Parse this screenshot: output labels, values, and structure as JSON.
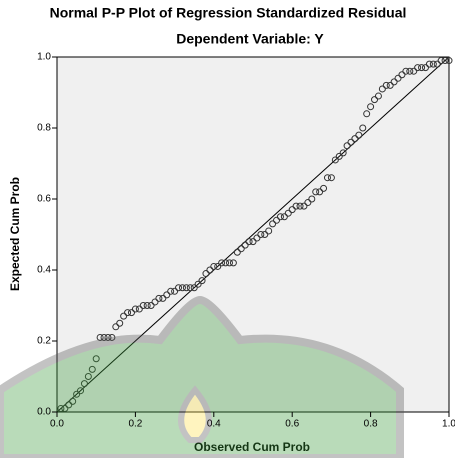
{
  "chart_data": {
    "type": "scatter",
    "title": "Normal P-P Plot of Regression Standardized Residual",
    "subtitle": "Dependent Variable: Y",
    "x_label": "Observed Cum Prob",
    "y_label": "Expected Cum Prob",
    "xlim": [
      0,
      1
    ],
    "ylim": [
      0,
      1
    ],
    "xticks": [
      {
        "value": 0,
        "label": "0.0"
      },
      0.2,
      0.4,
      0.6,
      0.8,
      {
        "value": 1,
        "label": "1.0"
      }
    ],
    "yticks": [
      {
        "value": 0,
        "label": "0.0"
      },
      0.2,
      0.4,
      0.6,
      0.8,
      {
        "value": 1,
        "label": "1.0"
      }
    ],
    "x": [
      0.01,
      0.02,
      0.03,
      0.04,
      0.05,
      0.06,
      0.07,
      0.08,
      0.09,
      0.1,
      0.11,
      0.12,
      0.13,
      0.14,
      0.15,
      0.16,
      0.17,
      0.18,
      0.19,
      0.2,
      0.21,
      0.22,
      0.23,
      0.24,
      0.25,
      0.26,
      0.27,
      0.28,
      0.29,
      0.3,
      0.31,
      0.32,
      0.33,
      0.34,
      0.35,
      0.36,
      0.37,
      0.38,
      0.39,
      0.4,
      0.41,
      0.42,
      0.43,
      0.44,
      0.45,
      0.46,
      0.47,
      0.48,
      0.49,
      0.5,
      0.51,
      0.52,
      0.53,
      0.54,
      0.55,
      0.56,
      0.57,
      0.58,
      0.59,
      0.6,
      0.61,
      0.62,
      0.63,
      0.64,
      0.65,
      0.66,
      0.67,
      0.68,
      0.69,
      0.7,
      0.71,
      0.72,
      0.73,
      0.74,
      0.75,
      0.76,
      0.77,
      0.78,
      0.79,
      0.8,
      0.81,
      0.82,
      0.83,
      0.84,
      0.85,
      0.86,
      0.87,
      0.88,
      0.89,
      0.9,
      0.91,
      0.92,
      0.93,
      0.94,
      0.95,
      0.96,
      0.97,
      0.98,
      0.99,
      1.0
    ],
    "values": [
      0.01,
      0.01,
      0.02,
      0.03,
      0.05,
      0.06,
      0.08,
      0.1,
      0.12,
      0.15,
      0.21,
      0.21,
      0.21,
      0.21,
      0.24,
      0.25,
      0.27,
      0.28,
      0.28,
      0.29,
      0.29,
      0.3,
      0.3,
      0.3,
      0.31,
      0.32,
      0.32,
      0.33,
      0.34,
      0.34,
      0.35,
      0.35,
      0.35,
      0.35,
      0.35,
      0.36,
      0.37,
      0.39,
      0.4,
      0.41,
      0.41,
      0.42,
      0.42,
      0.42,
      0.42,
      0.45,
      0.46,
      0.47,
      0.48,
      0.48,
      0.49,
      0.5,
      0.5,
      0.51,
      0.53,
      0.54,
      0.55,
      0.55,
      0.56,
      0.57,
      0.58,
      0.58,
      0.58,
      0.59,
      0.6,
      0.62,
      0.62,
      0.63,
      0.66,
      0.66,
      0.71,
      0.72,
      0.73,
      0.75,
      0.76,
      0.77,
      0.78,
      0.8,
      0.84,
      0.86,
      0.88,
      0.89,
      0.91,
      0.92,
      0.92,
      0.93,
      0.94,
      0.95,
      0.96,
      0.96,
      0.96,
      0.97,
      0.97,
      0.97,
      0.98,
      0.98,
      0.98,
      0.99,
      0.99,
      0.99
    ],
    "color": "#333333",
    "background": "#f0f0f0"
  }
}
